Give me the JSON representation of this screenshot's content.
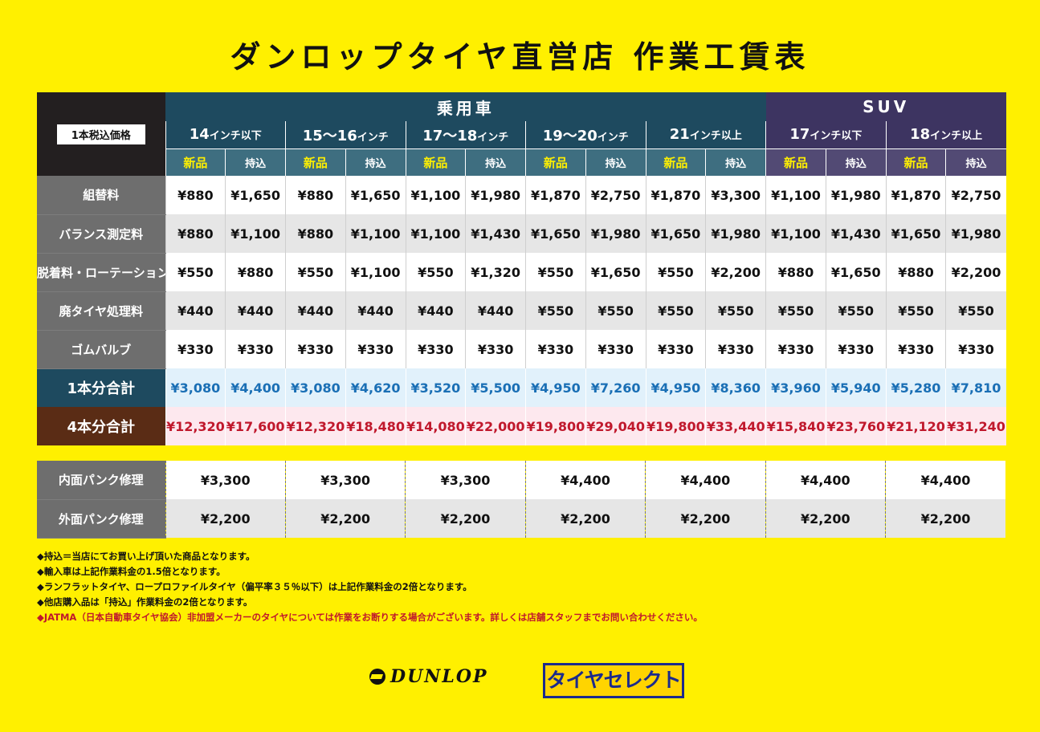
{
  "title": "ダンロップタイヤ直営店 作業工賃表",
  "corner_label": "1本税込価格",
  "groups": {
    "car": "乗用車",
    "suv": "SUV"
  },
  "sizes": [
    {
      "num": "14",
      "unit": "インチ以下"
    },
    {
      "num": "15〜16",
      "unit": "インチ"
    },
    {
      "num": "17〜18",
      "unit": "インチ"
    },
    {
      "num": "19〜20",
      "unit": "インチ"
    },
    {
      "num": "21",
      "unit": "インチ以上"
    },
    {
      "num": "17",
      "unit": "インチ以下"
    },
    {
      "num": "18",
      "unit": "インチ以上"
    }
  ],
  "sub_labels": {
    "new": "新品",
    "bring": "持込"
  },
  "rows": [
    {
      "label": "組替料",
      "values": [
        "¥880",
        "¥1,650",
        "¥880",
        "¥1,650",
        "¥1,100",
        "¥1,980",
        "¥1,870",
        "¥2,750",
        "¥1,870",
        "¥3,300",
        "¥1,100",
        "¥1,980",
        "¥1,870",
        "¥2,750"
      ]
    },
    {
      "label": "バランス測定料",
      "values": [
        "¥880",
        "¥1,100",
        "¥880",
        "¥1,100",
        "¥1,100",
        "¥1,430",
        "¥1,650",
        "¥1,980",
        "¥1,650",
        "¥1,980",
        "¥1,100",
        "¥1,430",
        "¥1,650",
        "¥1,980"
      ]
    },
    {
      "label": "脱着料・ローテーション",
      "values": [
        "¥550",
        "¥880",
        "¥550",
        "¥1,100",
        "¥550",
        "¥1,320",
        "¥550",
        "¥1,650",
        "¥550",
        "¥2,200",
        "¥880",
        "¥1,650",
        "¥880",
        "¥2,200"
      ]
    },
    {
      "label": "廃タイヤ処理料",
      "values": [
        "¥440",
        "¥440",
        "¥440",
        "¥440",
        "¥440",
        "¥440",
        "¥550",
        "¥550",
        "¥550",
        "¥550",
        "¥550",
        "¥550",
        "¥550",
        "¥550"
      ]
    },
    {
      "label": "ゴムバルブ",
      "values": [
        "¥330",
        "¥330",
        "¥330",
        "¥330",
        "¥330",
        "¥330",
        "¥330",
        "¥330",
        "¥330",
        "¥330",
        "¥330",
        "¥330",
        "¥330",
        "¥330"
      ]
    }
  ],
  "total_one": {
    "label": "1本分合計",
    "values": [
      "¥3,080",
      "¥4,400",
      "¥3,080",
      "¥4,620",
      "¥3,520",
      "¥5,500",
      "¥4,950",
      "¥7,260",
      "¥4,950",
      "¥8,360",
      "¥3,960",
      "¥5,940",
      "¥5,280",
      "¥7,810"
    ]
  },
  "total_four": {
    "label": "4本分合計",
    "values": [
      "¥12,320",
      "¥17,600",
      "¥12,320",
      "¥18,480",
      "¥14,080",
      "¥22,000",
      "¥19,800",
      "¥29,040",
      "¥19,800",
      "¥33,440",
      "¥15,840",
      "¥23,760",
      "¥21,120",
      "¥31,240"
    ]
  },
  "repair": [
    {
      "label": "内面パンク修理",
      "values": [
        "¥3,300",
        "¥3,300",
        "¥3,300",
        "¥4,400",
        "¥4,400",
        "¥4,400",
        "¥4,400"
      ]
    },
    {
      "label": "外面パンク修理",
      "values": [
        "¥2,200",
        "¥2,200",
        "¥2,200",
        "¥2,200",
        "¥2,200",
        "¥2,200",
        "¥2,200"
      ]
    }
  ],
  "notes": [
    "◆持込＝当店にてお買い上げ頂いた商品となります。",
    "◆輸入車は上記作業料金の1.5倍となります。",
    "◆ランフラットタイヤ、ロープロファイルタイヤ（偏平率３５％以下）は上記作業料金の2倍となります。",
    "◆他店購入品は「持込」作業料金の2倍となります。"
  ],
  "note_red": "◆JATMA（日本自動車タイヤ協会）非加盟メーカーのタイヤについては作業をお断りする場合がございます。詳しくは店舗スタッフまでお問い合わせください。",
  "logos": {
    "dunlop": "DUNLOP",
    "tire_select": "タイヤセレクト"
  },
  "colors": {
    "background": "#FFF000",
    "car_header": "#1E4A5F",
    "suv_header": "#3D3461",
    "total_one": "#1A6FB5",
    "total_four": "#C0182C"
  }
}
